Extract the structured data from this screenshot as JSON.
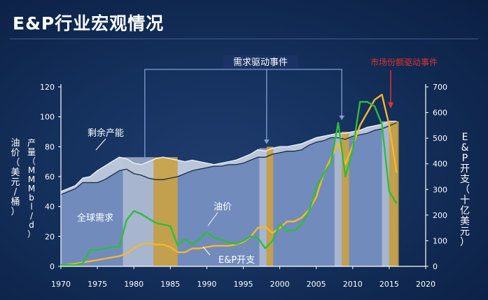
{
  "title": "E&P行业宏观情况",
  "chart_data": {
    "type": "line",
    "x_ticks": [
      "1970",
      "1975",
      "1980",
      "1985",
      "1990",
      "1995",
      "2000",
      "2005",
      "2010",
      "2015",
      "2020"
    ],
    "x_range": [
      1970,
      2020
    ],
    "y_left": {
      "label_parts": [
        "油价（美元/桶）",
        "产量（MMMbl/d）"
      ],
      "ticks": [
        "0",
        "20",
        "40",
        "60",
        "80",
        "100",
        "120"
      ],
      "range": [
        0,
        120
      ]
    },
    "y_right": {
      "label": "E&P开支（十亿美元）",
      "ticks": [
        "0",
        "100",
        "200",
        "300",
        "400",
        "500",
        "600",
        "700"
      ],
      "range": [
        0,
        700
      ]
    },
    "annotations": {
      "demand": "需求驱动事件",
      "market_share": "市场份额驱动事件",
      "spare_capacity": "剩余产能",
      "global_demand": "全球需求",
      "oil_price": "油价",
      "ep_spend": "E&P开支"
    },
    "colors": {
      "oil_price": "#2ebd3a",
      "ep_spend": "#f5b82e",
      "capacity_fill": "#c8d2e4",
      "demand_fill": "#6683b8",
      "gold_band": "#c9a244",
      "grey_band": "#b9c3d6",
      "market_share_text": "#e0332b",
      "demand_marker": "#7ea0d6"
    },
    "event_bands": [
      {
        "type": "grey",
        "from": 1978.5,
        "to": 1982.7
      },
      {
        "type": "gold",
        "from": 1982.7,
        "to": 1986.0
      },
      {
        "type": "grey",
        "from": 1997.2,
        "to": 1998.2
      },
      {
        "type": "gold",
        "from": 1998.2,
        "to": 1999.1
      },
      {
        "type": "grey",
        "from": 2007.5,
        "to": 2008.5
      },
      {
        "type": "gold",
        "from": 2008.5,
        "to": 2009.5
      },
      {
        "type": "grey",
        "from": 2014.0,
        "to": 2015.0
      },
      {
        "type": "gold",
        "from": 2015.0,
        "to": 2016.3
      }
    ],
    "series": [
      {
        "key": "capacity",
        "axis": "left",
        "x": [
          1970,
          1972,
          1973,
          1974,
          1975,
          1976,
          1977,
          1978,
          1979,
          1980,
          1981,
          1982,
          1983,
          1984,
          1985,
          1986,
          1987,
          1988,
          1989,
          1990,
          1991,
          1992,
          1993,
          1994,
          1995,
          1996,
          1997,
          1998,
          1999,
          2000,
          2001,
          2002,
          2003,
          2004,
          2005,
          2006,
          2007,
          2008,
          2009,
          2010,
          2011,
          2012,
          2013,
          2014,
          2015,
          2016
        ],
        "y": [
          50,
          54,
          59,
          60,
          64,
          67,
          70,
          73,
          72,
          69,
          68,
          70,
          72,
          73,
          72,
          71,
          70,
          71,
          70,
          69,
          68,
          69,
          70,
          71,
          73,
          75,
          78,
          77,
          79,
          80,
          80,
          81,
          82,
          84,
          86,
          87,
          88,
          89,
          89,
          90,
          91,
          93,
          94,
          95,
          97,
          97
        ]
      },
      {
        "key": "demand",
        "axis": "left",
        "x": [
          1970,
          1972,
          1973,
          1974,
          1975,
          1976,
          1977,
          1978,
          1979,
          1980,
          1981,
          1982,
          1983,
          1984,
          1985,
          1986,
          1987,
          1988,
          1989,
          1990,
          1991,
          1992,
          1993,
          1994,
          1995,
          1996,
          1997,
          1998,
          1999,
          2000,
          2001,
          2002,
          2003,
          2004,
          2005,
          2006,
          2007,
          2008,
          2009,
          2010,
          2011,
          2012,
          2013,
          2014,
          2015,
          2016
        ],
        "y": [
          48,
          52,
          56,
          56,
          56,
          58,
          61,
          64,
          65,
          62,
          61,
          59,
          58,
          58,
          59,
          60,
          62,
          64,
          65,
          66,
          67,
          67,
          68,
          68,
          69,
          71,
          73,
          73,
          75,
          76,
          77,
          77,
          78,
          81,
          83,
          84,
          86,
          86,
          85,
          87,
          88,
          89,
          91,
          92,
          94,
          96
        ]
      },
      {
        "key": "oil_price",
        "name": "油价",
        "axis": "left",
        "x": [
          1970,
          1972,
          1973,
          1974,
          1975,
          1976,
          1977,
          1978,
          1979,
          1980,
          1981,
          1982,
          1983,
          1984,
          1985,
          1986,
          1987,
          1988,
          1989,
          1990,
          1991,
          1992,
          1993,
          1994,
          1995,
          1996,
          1997,
          1998,
          1999,
          2000,
          2001,
          2002,
          2003,
          2004,
          2005,
          2006,
          2007,
          2008,
          2009,
          2010,
          2011,
          2012,
          2013,
          2014,
          2015,
          2016
        ],
        "y": [
          1,
          1,
          2,
          11,
          11,
          12,
          13,
          13,
          31,
          37,
          35,
          32,
          29,
          28,
          27,
          14,
          18,
          15,
          18,
          23,
          19,
          18,
          16,
          15,
          17,
          20,
          19,
          12,
          17,
          28,
          24,
          24,
          28,
          37,
          52,
          62,
          69,
          96,
          60,
          78,
          110,
          110,
          107,
          95,
          50,
          42
        ]
      },
      {
        "key": "ep_spend",
        "name": "E&P开支",
        "axis": "right",
        "x": [
          1970,
          1972,
          1973,
          1974,
          1975,
          1976,
          1977,
          1978,
          1979,
          1980,
          1981,
          1982,
          1983,
          1984,
          1985,
          1986,
          1987,
          1988,
          1989,
          1990,
          1991,
          1992,
          1993,
          1994,
          1995,
          1996,
          1997,
          1998,
          1999,
          2000,
          2001,
          2002,
          2003,
          2004,
          2005,
          2006,
          2007,
          2008,
          2009,
          2010,
          2011,
          2012,
          2013,
          2014,
          2015,
          2016
        ],
        "y": [
          5,
          10,
          15,
          20,
          25,
          30,
          35,
          40,
          50,
          70,
          85,
          90,
          85,
          85,
          75,
          55,
          55,
          70,
          70,
          75,
          80,
          80,
          80,
          85,
          95,
          115,
          150,
          155,
          130,
          150,
          175,
          175,
          190,
          220,
          270,
          360,
          420,
          480,
          400,
          470,
          550,
          600,
          650,
          670,
          550,
          365
        ]
      }
    ]
  }
}
